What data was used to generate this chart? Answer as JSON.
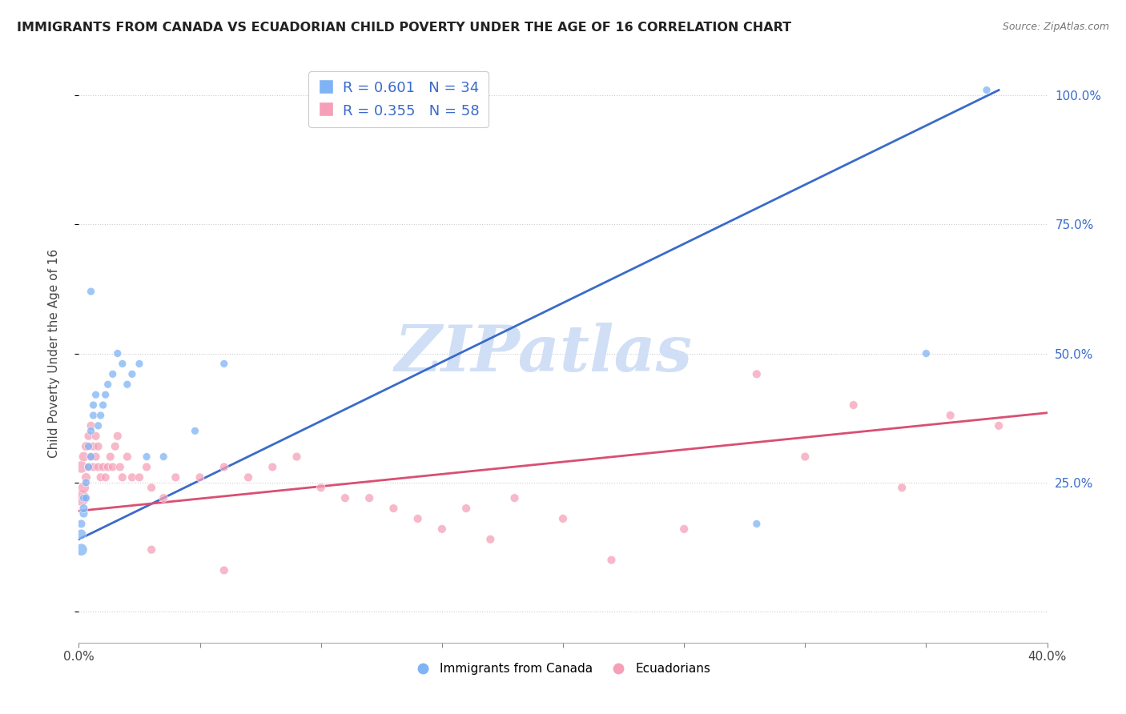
{
  "title": "IMMIGRANTS FROM CANADA VS ECUADORIAN CHILD POVERTY UNDER THE AGE OF 16 CORRELATION CHART",
  "source": "Source: ZipAtlas.com",
  "ylabel": "Child Poverty Under the Age of 16",
  "blue_R": 0.601,
  "blue_N": 34,
  "pink_R": 0.355,
  "pink_N": 58,
  "blue_color": "#7eb3f5",
  "pink_color": "#f5a0b8",
  "blue_line_color": "#3a6bc9",
  "pink_line_color": "#d94f72",
  "stat_text_color": "#3a6bc9",
  "watermark": "ZIPatlas",
  "watermark_color": "#d0dff5",
  "legend_label_blue": "Immigrants from Canada",
  "legend_label_pink": "Ecuadorians",
  "xmin": 0.0,
  "xmax": 0.4,
  "ymin": -0.06,
  "ymax": 1.06,
  "yticks": [
    0.0,
    0.25,
    0.5,
    0.75,
    1.0
  ],
  "ytick_labels_right": [
    "",
    "25.0%",
    "50.0%",
    "75.0%",
    "100.0%"
  ],
  "xticks": [
    0.0,
    0.4
  ],
  "xtick_labels": [
    "0.0%",
    "40.0%"
  ],
  "blue_trend": [
    0.0,
    0.38,
    0.14,
    1.01
  ],
  "pink_trend": [
    0.0,
    0.4,
    0.195,
    0.385
  ],
  "blue_scatter_x": [
    0.001,
    0.001,
    0.001,
    0.002,
    0.002,
    0.002,
    0.003,
    0.003,
    0.004,
    0.004,
    0.005,
    0.005,
    0.006,
    0.006,
    0.007,
    0.008,
    0.009,
    0.01,
    0.011,
    0.012,
    0.014,
    0.016,
    0.018,
    0.02,
    0.022,
    0.025,
    0.028,
    0.035,
    0.048,
    0.06,
    0.28,
    0.35,
    0.375,
    0.005
  ],
  "blue_scatter_y": [
    0.12,
    0.15,
    0.17,
    0.19,
    0.2,
    0.22,
    0.22,
    0.25,
    0.28,
    0.32,
    0.3,
    0.35,
    0.38,
    0.4,
    0.42,
    0.36,
    0.38,
    0.4,
    0.42,
    0.44,
    0.46,
    0.5,
    0.48,
    0.44,
    0.46,
    0.48,
    0.3,
    0.3,
    0.35,
    0.48,
    0.17,
    0.5,
    1.01,
    0.62
  ],
  "pink_scatter_x": [
    0.001,
    0.001,
    0.002,
    0.002,
    0.003,
    0.003,
    0.004,
    0.004,
    0.005,
    0.005,
    0.006,
    0.006,
    0.007,
    0.007,
    0.008,
    0.008,
    0.009,
    0.01,
    0.011,
    0.012,
    0.013,
    0.014,
    0.015,
    0.016,
    0.017,
    0.018,
    0.02,
    0.022,
    0.025,
    0.028,
    0.03,
    0.035,
    0.04,
    0.05,
    0.06,
    0.07,
    0.08,
    0.09,
    0.1,
    0.11,
    0.12,
    0.13,
    0.14,
    0.15,
    0.16,
    0.17,
    0.18,
    0.2,
    0.22,
    0.25,
    0.28,
    0.3,
    0.32,
    0.34,
    0.36,
    0.38,
    0.03,
    0.06
  ],
  "pink_scatter_y": [
    0.22,
    0.28,
    0.24,
    0.3,
    0.26,
    0.32,
    0.28,
    0.34,
    0.3,
    0.36,
    0.28,
    0.32,
    0.3,
    0.34,
    0.28,
    0.32,
    0.26,
    0.28,
    0.26,
    0.28,
    0.3,
    0.28,
    0.32,
    0.34,
    0.28,
    0.26,
    0.3,
    0.26,
    0.26,
    0.28,
    0.24,
    0.22,
    0.26,
    0.26,
    0.28,
    0.26,
    0.28,
    0.3,
    0.24,
    0.22,
    0.22,
    0.2,
    0.18,
    0.16,
    0.2,
    0.14,
    0.22,
    0.18,
    0.1,
    0.16,
    0.46,
    0.3,
    0.4,
    0.24,
    0.38,
    0.36,
    0.12,
    0.08
  ],
  "blue_scatter_sizes": [
    120,
    80,
    60,
    60,
    60,
    50,
    50,
    50,
    50,
    50,
    50,
    50,
    50,
    50,
    50,
    50,
    50,
    50,
    50,
    50,
    50,
    50,
    50,
    50,
    50,
    50,
    50,
    50,
    50,
    50,
    50,
    50,
    50,
    50
  ],
  "pink_scatter_sizes": [
    200,
    120,
    100,
    80,
    70,
    70,
    60,
    60,
    60,
    60,
    60,
    60,
    60,
    60,
    60,
    60,
    60,
    60,
    60,
    60,
    60,
    60,
    60,
    60,
    60,
    60,
    60,
    60,
    60,
    60,
    60,
    60,
    60,
    60,
    60,
    60,
    60,
    60,
    60,
    60,
    60,
    60,
    60,
    60,
    60,
    60,
    60,
    60,
    60,
    60,
    60,
    60,
    60,
    60,
    60,
    60,
    60,
    60
  ]
}
